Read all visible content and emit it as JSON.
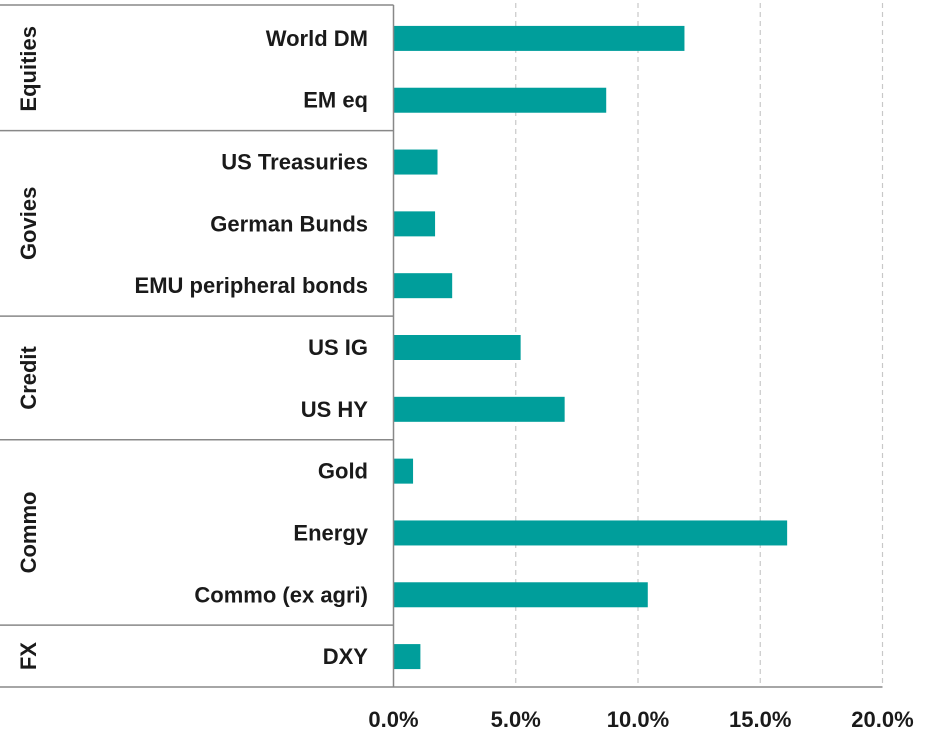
{
  "chart_data": {
    "type": "bar",
    "orientation": "horizontal",
    "categories": [
      "World DM",
      "EM eq",
      "US Treasuries",
      "German Bunds",
      "EMU peripheral bonds",
      "US IG",
      "US HY",
      "Gold",
      "Energy",
      "Commo (ex agri)",
      "DXY"
    ],
    "groups": [
      {
        "name": "Equities",
        "members": [
          "World DM",
          "EM eq"
        ]
      },
      {
        "name": "Govies",
        "members": [
          "US Treasuries",
          "German Bunds",
          "EMU peripheral bonds"
        ]
      },
      {
        "name": "Credit",
        "members": [
          "US IG",
          "US HY"
        ]
      },
      {
        "name": "Commo",
        "members": [
          "Gold",
          "Energy",
          "Commo (ex agri)"
        ]
      },
      {
        "name": "FX",
        "members": [
          "DXY"
        ]
      }
    ],
    "values": [
      11.9,
      8.7,
      1.8,
      1.7,
      2.4,
      5.2,
      7.0,
      0.8,
      16.1,
      10.4,
      1.1
    ],
    "xlim": [
      0,
      20
    ],
    "xticks": [
      "0.0%",
      "5.0%",
      "10.0%",
      "15.0%",
      "20.0%"
    ],
    "grid": "vertical dashed",
    "legend": "none",
    "bar_color": "#009e9b"
  }
}
